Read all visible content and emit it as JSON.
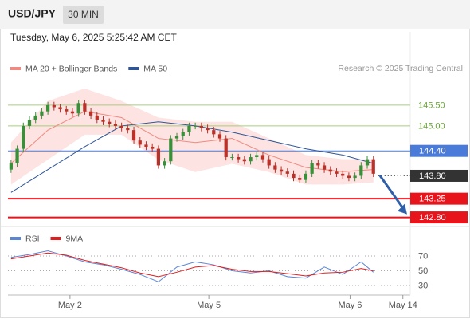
{
  "header": {
    "symbol": "USD/JPY",
    "timeframe": "30 MIN",
    "timestamp": "Tuesday, May 6, 2025 5:25:42 AM CET",
    "credit": "Research © 2025 Trading Central"
  },
  "chart_data": [
    {
      "type": "candlestick",
      "up_color": "#3a8f3a",
      "down_color": "#b8322a",
      "open": [
        143.95,
        144.1,
        144.45,
        145.0,
        145.15,
        145.25,
        145.35,
        145.5,
        145.45,
        145.4,
        145.35,
        145.3,
        145.55,
        145.35,
        145.25,
        145.15,
        145.1,
        145.05,
        145.0,
        144.95,
        144.9,
        144.65,
        144.55,
        144.5,
        144.45,
        144.05,
        144.15,
        144.7,
        144.75,
        144.85,
        145.0,
        145.0,
        144.95,
        144.9,
        144.8,
        144.7,
        144.25,
        144.25,
        144.2,
        144.15,
        144.25,
        144.3,
        144.2,
        144.05,
        143.95,
        143.9,
        143.85,
        143.75,
        143.7,
        143.85,
        144.1,
        144.05,
        143.95,
        143.9,
        143.85,
        143.8,
        143.75,
        143.8,
        144.05,
        144.2
      ],
      "high": [
        144.18,
        144.53,
        145.08,
        145.23,
        145.33,
        145.43,
        145.58,
        145.58,
        145.53,
        145.48,
        145.43,
        145.63,
        145.63,
        145.43,
        145.33,
        145.23,
        145.18,
        145.13,
        145.08,
        145.03,
        144.98,
        144.73,
        144.63,
        144.58,
        144.53,
        144.23,
        144.78,
        144.83,
        144.93,
        145.08,
        145.08,
        145.08,
        145.03,
        144.98,
        144.88,
        144.78,
        144.33,
        144.33,
        144.28,
        144.33,
        144.38,
        144.38,
        144.28,
        144.13,
        144.03,
        143.98,
        143.93,
        143.83,
        143.93,
        144.18,
        144.18,
        144.13,
        144.03,
        143.98,
        143.93,
        143.88,
        143.88,
        144.13,
        144.28,
        144.28
      ],
      "low": [
        143.87,
        144.02,
        144.37,
        144.92,
        145.07,
        145.17,
        145.27,
        145.37,
        145.32,
        145.27,
        145.22,
        145.22,
        145.27,
        145.17,
        145.07,
        145.02,
        144.97,
        144.92,
        144.87,
        144.82,
        144.57,
        144.47,
        144.42,
        144.37,
        143.97,
        143.97,
        144.07,
        144.62,
        144.67,
        144.77,
        144.92,
        144.87,
        144.82,
        144.72,
        144.62,
        144.17,
        144.17,
        144.12,
        144.07,
        144.07,
        144.17,
        144.12,
        143.97,
        143.87,
        143.82,
        143.77,
        143.67,
        143.62,
        143.62,
        143.77,
        143.97,
        143.87,
        143.82,
        143.77,
        143.72,
        143.67,
        143.67,
        143.72,
        143.97,
        143.77
      ],
      "close": [
        144.1,
        144.45,
        145.0,
        145.15,
        145.25,
        145.35,
        145.5,
        145.45,
        145.4,
        145.35,
        145.3,
        145.55,
        145.35,
        145.25,
        145.15,
        145.1,
        145.05,
        145.0,
        144.95,
        144.9,
        144.65,
        144.55,
        144.5,
        144.45,
        144.05,
        144.15,
        144.7,
        144.75,
        144.85,
        145.0,
        145.0,
        144.95,
        144.9,
        144.8,
        144.7,
        144.25,
        144.25,
        144.2,
        144.15,
        144.25,
        144.3,
        144.2,
        144.05,
        143.95,
        143.9,
        143.85,
        143.75,
        143.7,
        143.85,
        144.1,
        144.05,
        143.95,
        143.9,
        143.85,
        143.8,
        143.75,
        143.8,
        144.05,
        144.2,
        143.85
      ],
      "series": [
        {
          "name": "MA 20 + Bollinger Bands",
          "color": "#f08a80",
          "band_color": "#fde3e1",
          "x": [
            0,
            6,
            12,
            18,
            24,
            30,
            36,
            42,
            48,
            54,
            59
          ],
          "values": [
            144.1,
            144.9,
            145.35,
            145.2,
            144.7,
            144.6,
            144.7,
            144.3,
            144.0,
            143.9,
            143.95
          ],
          "upper": [
            144.6,
            145.6,
            145.9,
            145.6,
            145.2,
            145.1,
            145.1,
            144.7,
            144.3,
            144.2,
            144.2
          ],
          "lower": [
            143.6,
            144.2,
            144.8,
            144.8,
            144.2,
            143.9,
            144.1,
            143.9,
            143.6,
            143.6,
            143.65
          ]
        },
        {
          "name": "MA 50",
          "color": "#2f5597",
          "x": [
            0,
            6,
            12,
            18,
            24,
            30,
            36,
            42,
            48,
            54,
            59
          ],
          "values": [
            143.4,
            143.95,
            144.5,
            145.0,
            145.1,
            145.0,
            144.85,
            144.65,
            144.45,
            144.3,
            144.1
          ]
        }
      ],
      "levels": [
        {
          "value": 145.5,
          "label": "145.50",
          "color": "#a6cf7a",
          "text_color": "#6aa33a",
          "style": "plain"
        },
        {
          "value": 145.0,
          "label": "145.00",
          "color": "#a6cf7a",
          "text_color": "#6aa33a",
          "style": "plain"
        },
        {
          "value": 144.4,
          "label": "144.40",
          "color": "#4a7bd9",
          "text_color": "#ffffff",
          "style": "box"
        },
        {
          "value": 143.8,
          "label": "143.80",
          "color": "#333333",
          "text_color": "#ffffff",
          "style": "dotted"
        },
        {
          "value": 143.25,
          "label": "143.25",
          "color": "#e8141b",
          "text_color": "#ffffff",
          "style": "box"
        },
        {
          "value": 142.8,
          "label": "142.80",
          "color": "#e8141b",
          "text_color": "#ffffff",
          "style": "box"
        }
      ],
      "xlim": [
        -0.5,
        65
      ],
      "ylim": [
        142.6,
        146.15
      ],
      "xticks": [
        {
          "value": 9.6,
          "label": "May 2"
        },
        {
          "value": 32.2,
          "label": "May 5"
        },
        {
          "value": 55.2,
          "label": "May 6"
        },
        {
          "value": 63.8,
          "label": "May 14"
        }
      ]
    },
    {
      "type": "line",
      "series": [
        {
          "name": "RSI",
          "color": "#5b86d6",
          "x": [
            0,
            3,
            6,
            9,
            12,
            15,
            18,
            21,
            24,
            27,
            30,
            33,
            36,
            39,
            42,
            45,
            48,
            51,
            54,
            57,
            59
          ],
          "values": [
            68,
            72,
            77,
            70,
            62,
            58,
            52,
            45,
            35,
            55,
            62,
            58,
            50,
            47,
            50,
            42,
            40,
            55,
            45,
            62,
            48
          ]
        },
        {
          "name": "9MA",
          "color": "#e01e1e",
          "x": [
            0,
            3,
            6,
            9,
            12,
            15,
            18,
            21,
            24,
            27,
            30,
            33,
            36,
            39,
            42,
            45,
            48,
            51,
            54,
            57,
            59
          ],
          "values": [
            66,
            70,
            74,
            71,
            64,
            59,
            54,
            47,
            42,
            48,
            55,
            57,
            52,
            49,
            49,
            46,
            43,
            47,
            48,
            53,
            50
          ]
        }
      ],
      "ylim": [
        17,
        84
      ],
      "yticks": [
        70,
        50,
        30
      ],
      "grid": true
    }
  ]
}
